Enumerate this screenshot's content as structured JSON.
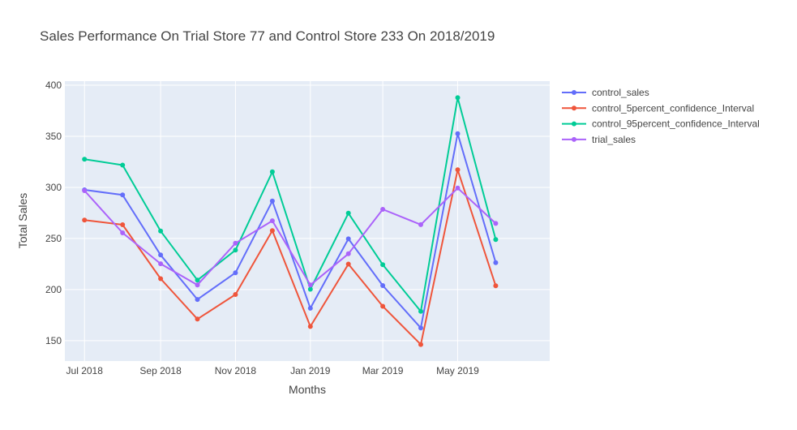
{
  "chart_data": {
    "type": "line",
    "title": "Sales Performance On Trial Store 77 and Control Store 233 On 2018/2019",
    "xlabel": "Months",
    "ylabel": "Total Sales",
    "x": [
      "2018-07",
      "2018-08",
      "2018-09",
      "2018-10",
      "2018-11",
      "2018-12",
      "2019-01",
      "2019-02",
      "2019-03",
      "2019-04",
      "2019-05",
      "2019-06"
    ],
    "xticks": [
      {
        "x": "2018-07",
        "label": "Jul 2018"
      },
      {
        "x": "2018-09",
        "label": "Sep 2018"
      },
      {
        "x": "2018-11",
        "label": "Nov 2018"
      },
      {
        "x": "2019-01",
        "label": "Jan 2019"
      },
      {
        "x": "2019-03",
        "label": "Mar 2019"
      },
      {
        "x": "2019-05",
        "label": "May 2019"
      }
    ],
    "xlim": [
      "2018-06-15",
      "2019-07-15"
    ],
    "ylim": [
      130,
      404
    ],
    "yticks": [
      150,
      200,
      250,
      300,
      350,
      400
    ],
    "grid": true,
    "legend_position": "top-right",
    "background_color": "#E5ECF6",
    "series": [
      {
        "name": "control_sales",
        "color": "#636EFA",
        "values": [
          297.6,
          292.6,
          233.8,
          190.3,
          216.4,
          286.6,
          181.7,
          249.6,
          203.9,
          162.4,
          352.5,
          226.3
        ]
      },
      {
        "name": "control_5percent_confidence_Interval",
        "color": "#EF553B",
        "values": [
          268.0,
          263.4,
          210.6,
          171.1,
          195.1,
          257.6,
          163.8,
          224.9,
          183.6,
          146.2,
          317.2,
          203.6
        ]
      },
      {
        "name": "control_95percent_confidence_Interval",
        "color": "#00CC96",
        "values": [
          327.6,
          321.8,
          257.2,
          209.2,
          238.6,
          315.2,
          200.3,
          274.7,
          224.3,
          178.6,
          387.8,
          248.9
        ]
      },
      {
        "name": "trial_sales",
        "color": "#AB63FA",
        "values": [
          296.8,
          255.5,
          225.2,
          204.5,
          245.3,
          267.3,
          204.4,
          235.0,
          278.5,
          263.5,
          299.3,
          264.7
        ]
      }
    ]
  }
}
